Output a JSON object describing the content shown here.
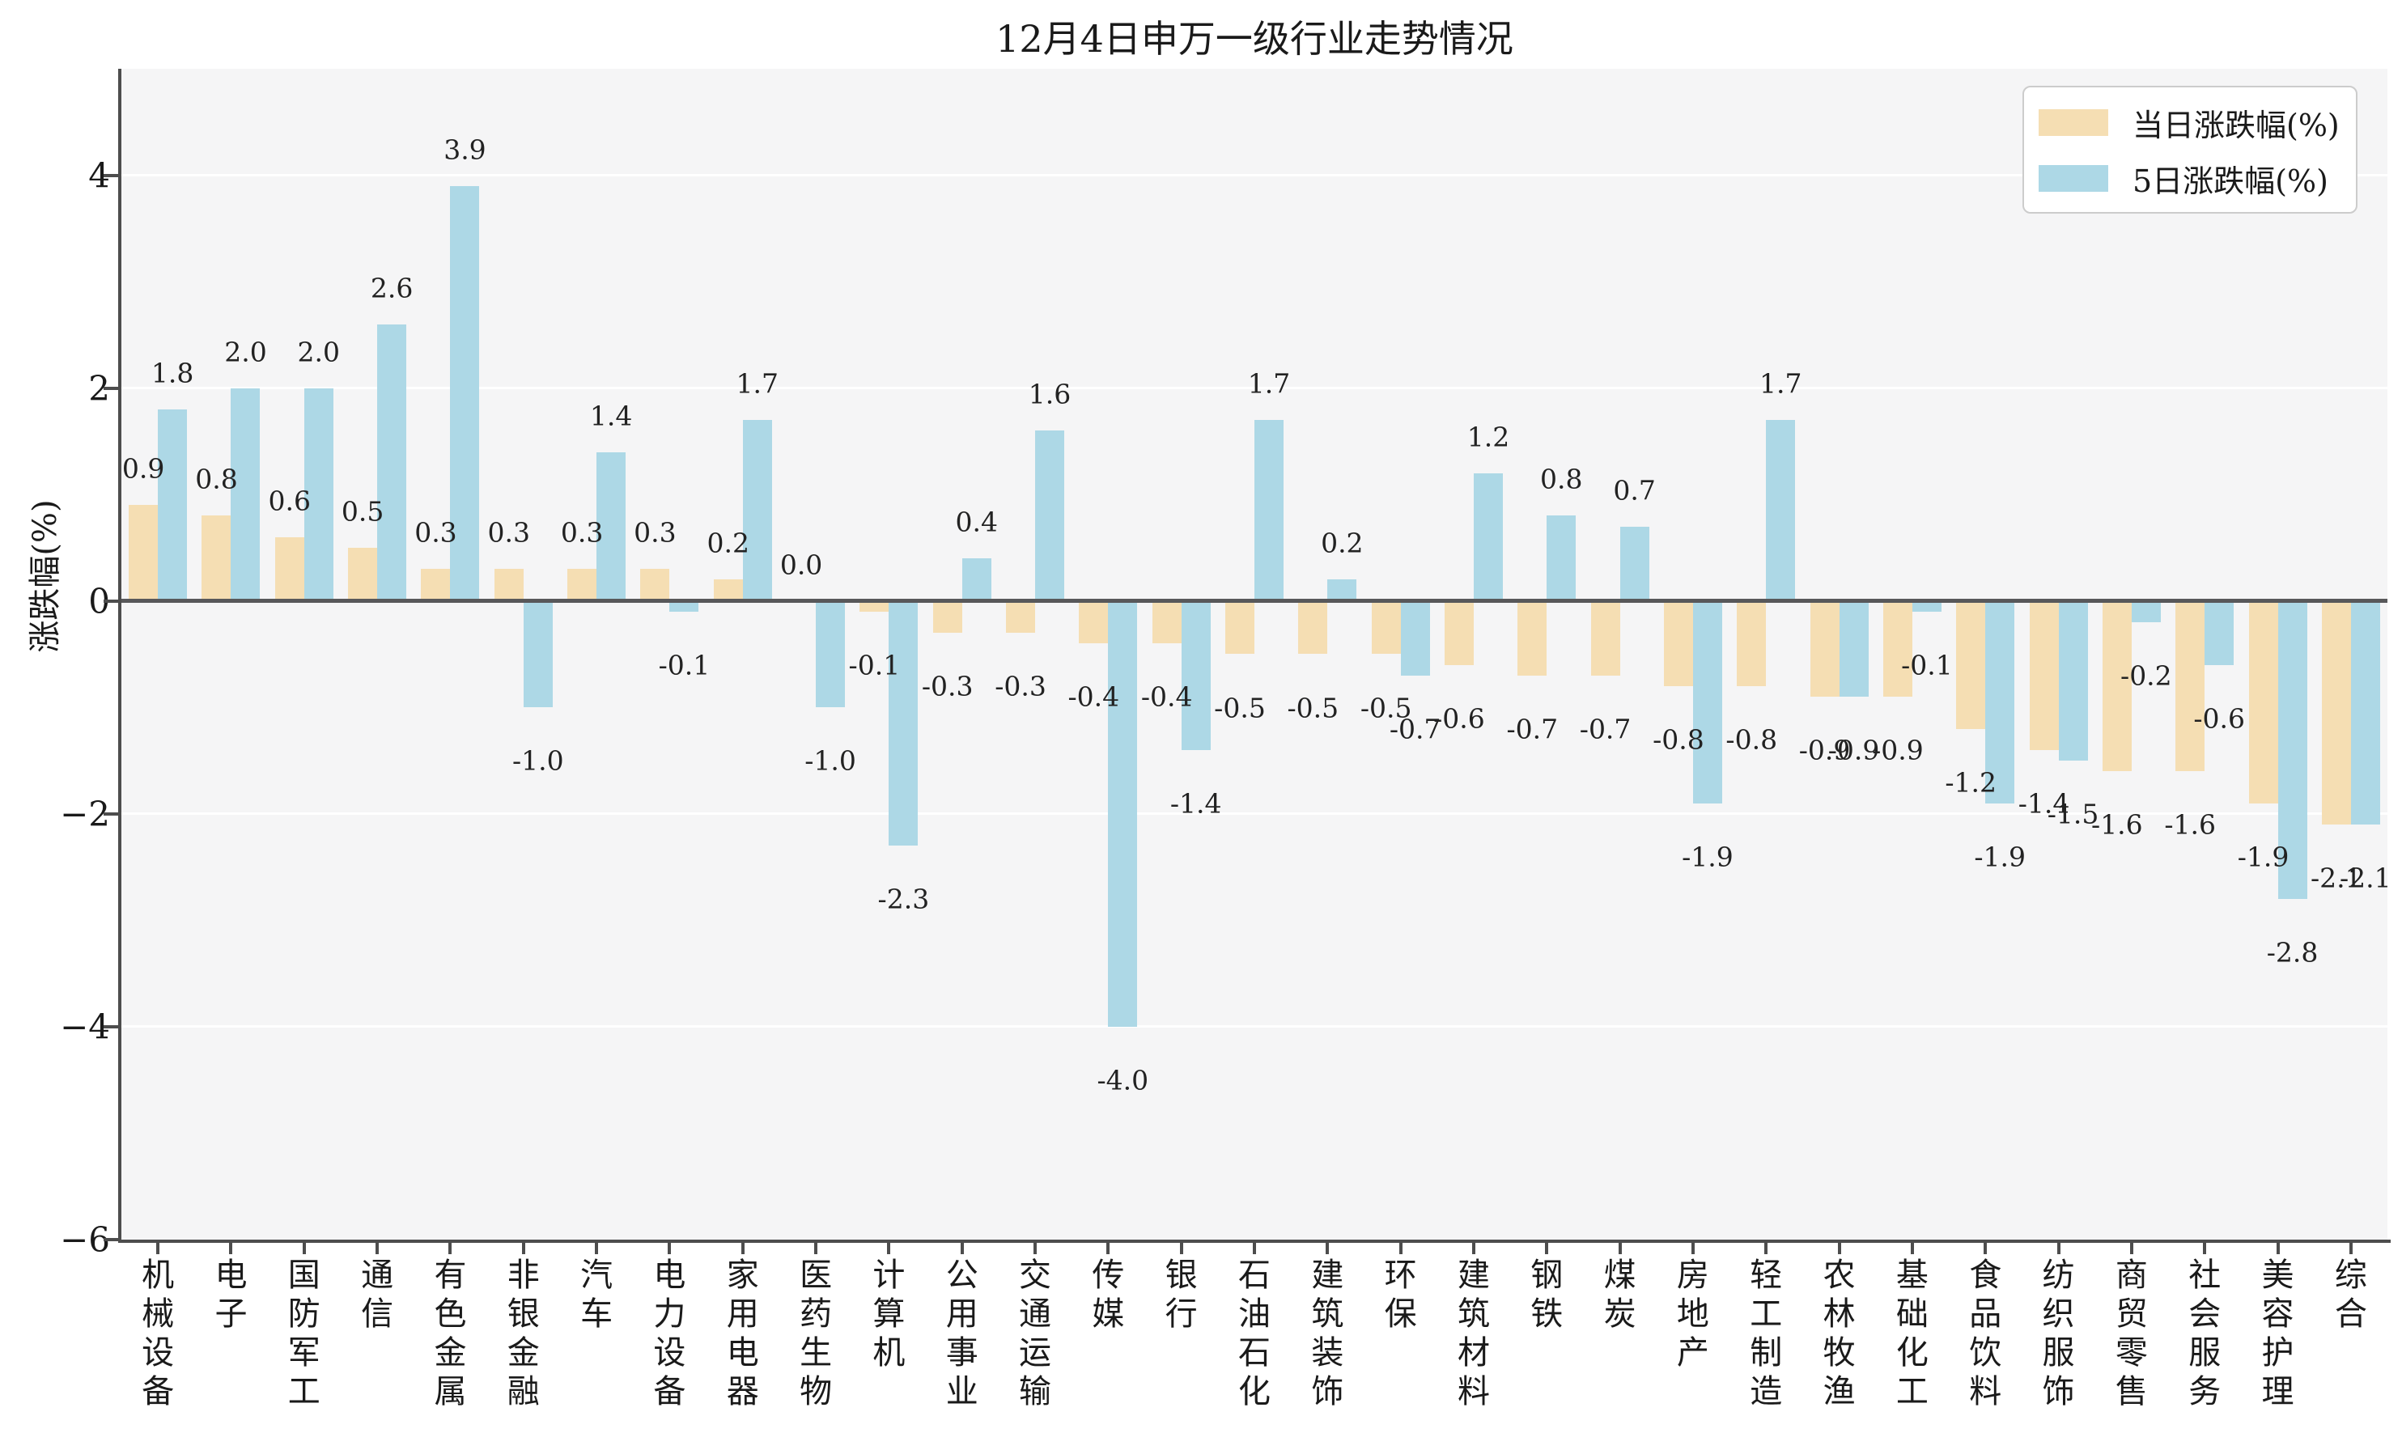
{
  "title": "12月4日申万一级行业走势情况",
  "y_axis": {
    "label": "涨跌幅(%)"
  },
  "legend": {
    "items": [
      {
        "label": "当日涨跌幅(%)",
        "color": "#F5DEB3"
      },
      {
        "label": "5日涨跌幅(%)",
        "color": "#ADD8E6"
      }
    ]
  },
  "colors": {
    "daily_bar": "#F5DEB3",
    "fiveday_bar": "#ADD8E6",
    "plot_background": "#f5f5f6",
    "zero_line": "#58585a",
    "spine": "#4d4d4d"
  },
  "chart_data": {
    "type": "bar",
    "title": "12月4日申万一级行业走势情况",
    "xlabel": "",
    "ylabel": "涨跌幅(%)",
    "ylim": [
      -6,
      5
    ],
    "yticks": [
      4,
      2,
      0,
      -2,
      -4,
      -6
    ],
    "grid": "horizontal-white-on-gray",
    "legend_position": "upper right",
    "categories": [
      "机械设备",
      "电子",
      "国防军工",
      "通信",
      "有色金属",
      "非银金融",
      "汽车",
      "电力设备",
      "家用电器",
      "医药生物",
      "计算机",
      "公用事业",
      "交通运输",
      "传媒",
      "银行",
      "石油石化",
      "建筑装饰",
      "环保",
      "建筑材料",
      "钢铁",
      "煤炭",
      "房地产",
      "轻工制造",
      "农林牧渔",
      "基础化工",
      "食品饮料",
      "纺织服饰",
      "商贸零售",
      "社会服务",
      "美容护理",
      "综合"
    ],
    "series": [
      {
        "name": "当日涨跌幅(%)",
        "color": "#F5DEB3",
        "values": [
          0.9,
          0.8,
          0.6,
          0.5,
          0.3,
          0.3,
          0.3,
          0.3,
          0.2,
          0.0,
          -0.1,
          -0.3,
          -0.3,
          -0.4,
          -0.4,
          -0.5,
          -0.5,
          -0.5,
          -0.6,
          -0.7,
          -0.7,
          -0.8,
          -0.8,
          -0.9,
          -0.9,
          -1.2,
          -1.4,
          -1.6,
          -1.6,
          -1.9,
          -2.1
        ]
      },
      {
        "name": "5日涨跌幅(%)",
        "color": "#ADD8E6",
        "values": [
          1.8,
          2.0,
          2.0,
          2.6,
          3.9,
          -1.0,
          1.4,
          -0.1,
          1.7,
          -1.0,
          -2.3,
          0.4,
          1.6,
          -4.0,
          -1.4,
          1.7,
          0.2,
          -0.7,
          1.2,
          0.8,
          0.7,
          -1.9,
          1.7,
          -0.9,
          -0.1,
          -1.9,
          -1.5,
          -0.2,
          -0.6,
          -2.8,
          -2.1
        ]
      }
    ]
  }
}
